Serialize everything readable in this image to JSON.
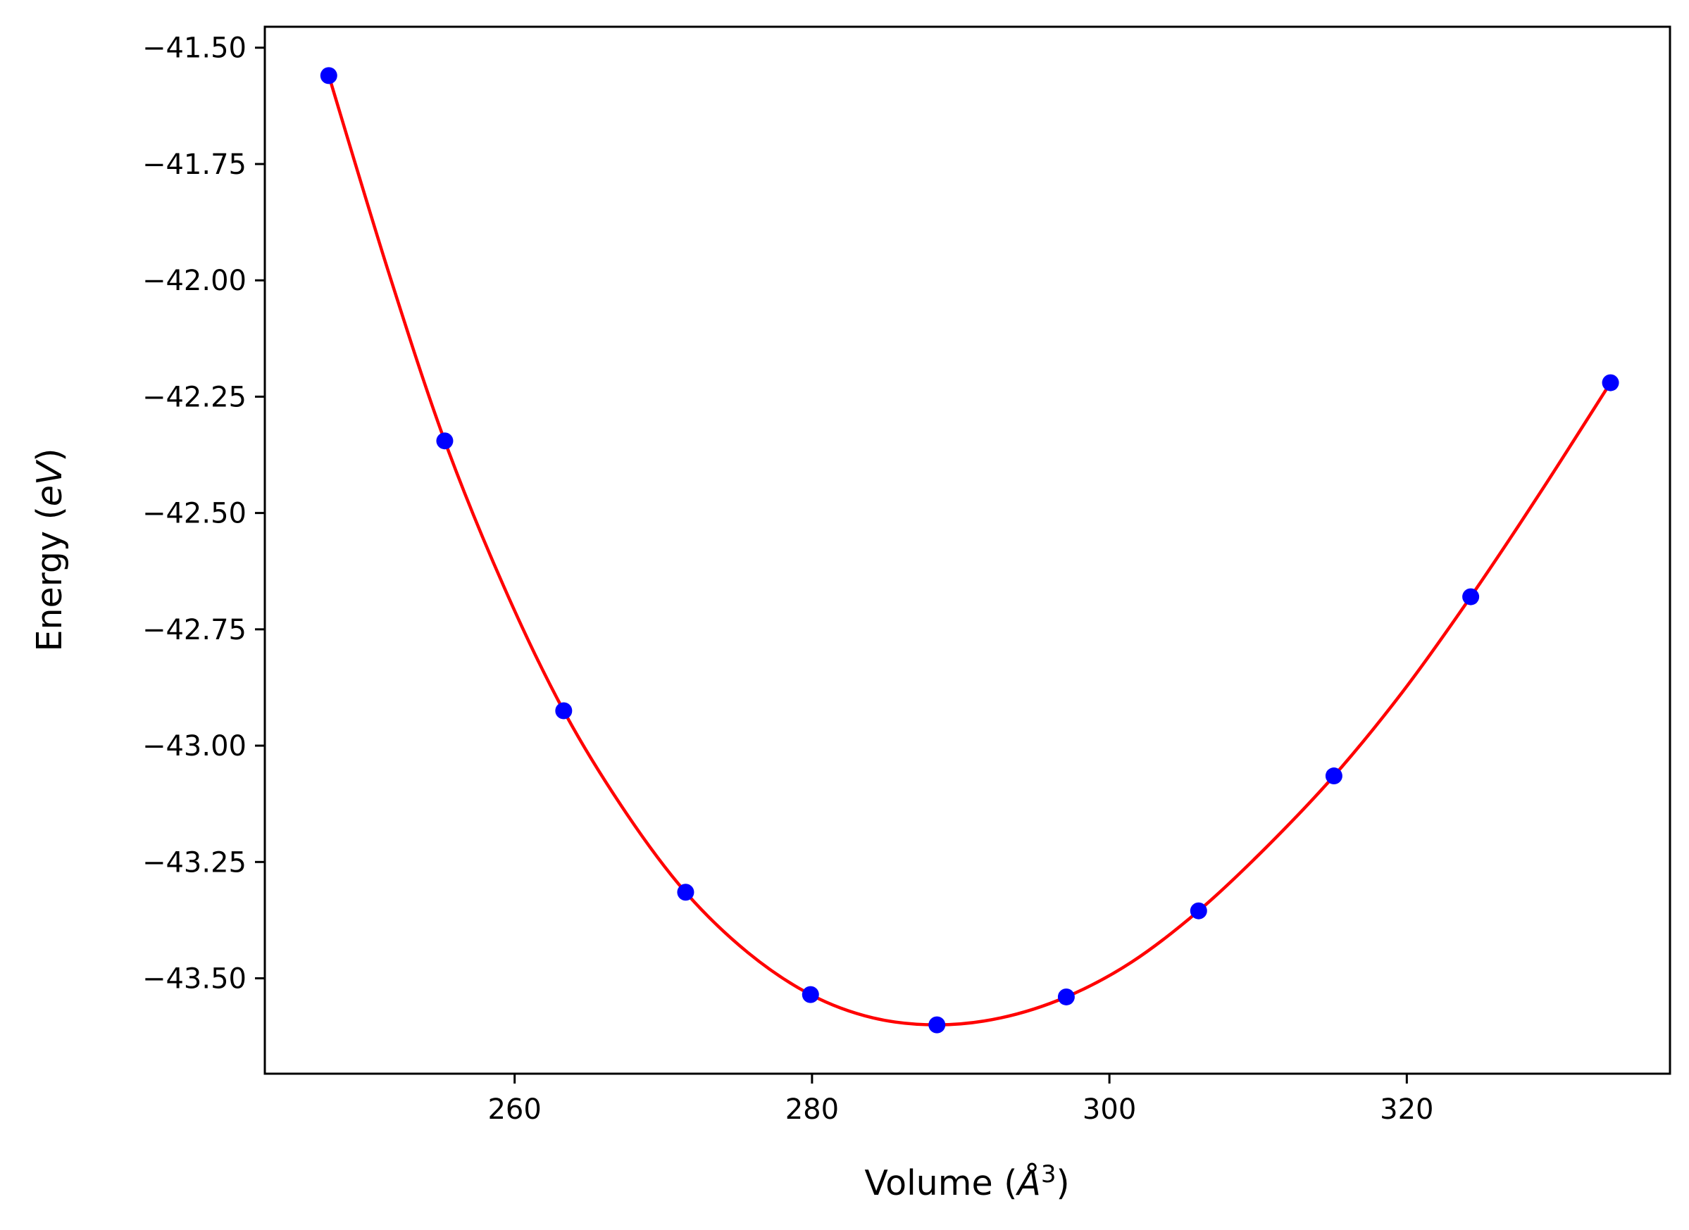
{
  "chart_data": {
    "type": "scatter",
    "title": "",
    "xlabel": "Volume (",
    "xlabel_unit": "Å",
    "xlabel_exp": "3",
    "xlabel_close": ")",
    "ylabel": "Energy (",
    "ylabel_unit": "eV",
    "ylabel_close": ")",
    "xlim": [
      243.2,
      337.7
    ],
    "ylim": [
      -43.705,
      -41.455
    ],
    "xticks": [
      260,
      280,
      300,
      320
    ],
    "xtick_labels": [
      "260",
      "280",
      "300",
      "320"
    ],
    "yticks": [
      -41.5,
      -41.75,
      -42.0,
      -42.25,
      -42.5,
      -42.75,
      -43.0,
      -43.25,
      -43.5
    ],
    "ytick_labels": [
      "−41.50",
      "−41.75",
      "−42.00",
      "−42.25",
      "−42.50",
      "−42.75",
      "−43.00",
      "−43.25",
      "−43.50"
    ],
    "grid": false,
    "legend": "none",
    "points": {
      "color": "#0000ff",
      "x": [
        247.5,
        255.3,
        263.3,
        271.5,
        279.9,
        288.4,
        297.1,
        306.0,
        315.1,
        324.3,
        333.7
      ],
      "y": [
        -41.56,
        -42.345,
        -42.925,
        -43.315,
        -43.535,
        -43.6,
        -43.54,
        -43.355,
        -43.065,
        -42.68,
        -42.22
      ]
    },
    "fit_curve": {
      "color": "#ff0000",
      "x": [
        247.5,
        251.5,
        255.3,
        259.3,
        263.3,
        267.4,
        271.5,
        275.7,
        279.9,
        284.1,
        288.4,
        292.7,
        297.1,
        301.5,
        306.0,
        310.5,
        315.1,
        319.7,
        324.3,
        329.0,
        333.7
      ],
      "y": [
        -41.56,
        -41.98,
        -42.345,
        -42.66,
        -42.925,
        -43.14,
        -43.315,
        -43.445,
        -43.535,
        -43.585,
        -43.6,
        -43.585,
        -43.54,
        -43.465,
        -43.355,
        -43.22,
        -43.065,
        -42.885,
        -42.68,
        -42.455,
        -42.22
      ]
    }
  }
}
